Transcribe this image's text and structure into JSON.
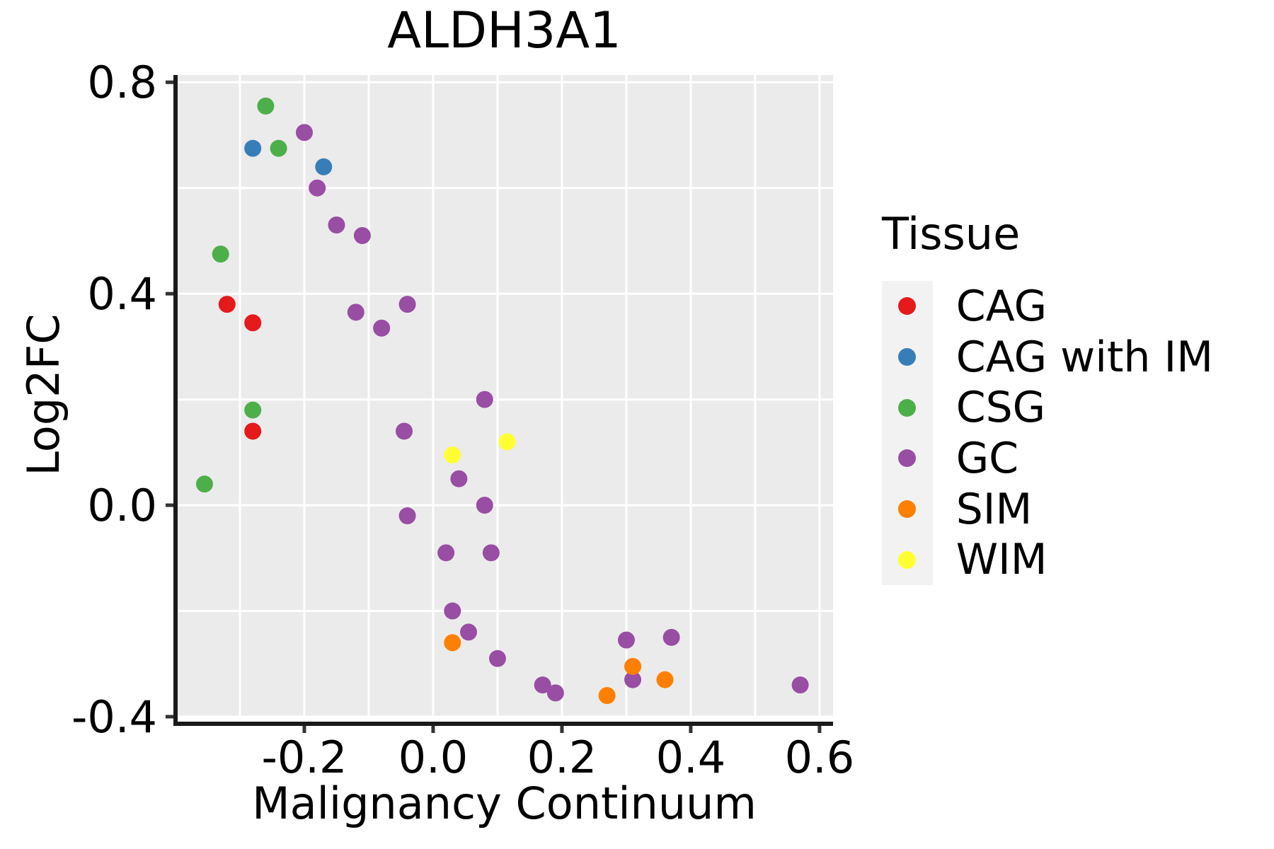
{
  "chart_data": {
    "type": "scatter",
    "title": "ALDH3A1",
    "xlabel": "Malignancy Continuum",
    "ylabel": "Log2FC",
    "xlim": [
      -0.4,
      0.621
    ],
    "ylim": [
      -0.4,
      0.8137
    ],
    "x_ticks": {
      "values": [
        -0.2,
        0.0,
        0.2,
        0.4,
        0.6
      ],
      "labels": [
        "-0.2",
        "0.0",
        "0.2",
        "0.4",
        "0.6"
      ]
    },
    "y_ticks": {
      "values": [
        0.8,
        0.4,
        0.0,
        -0.4
      ],
      "labels": [
        "0.8",
        "0.4",
        "0.0",
        "-0.4"
      ]
    },
    "x_gridlines": [
      -0.3,
      -0.2,
      -0.1,
      0.0,
      0.1,
      0.2,
      0.3,
      0.4,
      0.5,
      0.6
    ],
    "y_gridlines": [
      -0.4,
      -0.2,
      0.0,
      0.2,
      0.4,
      0.6,
      0.8
    ],
    "grid": true,
    "legend_title": "Tissue",
    "legend_position": "right",
    "point_radius": 12,
    "series": [
      {
        "name": "CAG",
        "color": "#E41A1C",
        "points": [
          [
            -0.32,
            0.38
          ],
          [
            -0.28,
            0.345
          ],
          [
            -0.28,
            0.14
          ]
        ]
      },
      {
        "name": "CAG with IM",
        "color": "#377EB8",
        "points": [
          [
            -0.28,
            0.675
          ],
          [
            -0.17,
            0.64
          ]
        ]
      },
      {
        "name": "CSG",
        "color": "#4DAF4A",
        "points": [
          [
            -0.26,
            0.755
          ],
          [
            -0.24,
            0.675
          ],
          [
            -0.33,
            0.475
          ],
          [
            -0.28,
            0.18
          ],
          [
            -0.355,
            0.04
          ]
        ]
      },
      {
        "name": "GC",
        "color": "#984EA3",
        "points": [
          [
            -0.2,
            0.705
          ],
          [
            -0.18,
            0.6
          ],
          [
            -0.15,
            0.53
          ],
          [
            -0.11,
            0.51
          ],
          [
            -0.12,
            0.365
          ],
          [
            -0.08,
            0.335
          ],
          [
            -0.04,
            0.38
          ],
          [
            0.08,
            0.2
          ],
          [
            -0.045,
            0.14
          ],
          [
            0.04,
            0.05
          ],
          [
            0.08,
            0.0
          ],
          [
            -0.04,
            -0.02
          ],
          [
            0.02,
            -0.09
          ],
          [
            0.09,
            -0.09
          ],
          [
            0.03,
            -0.2
          ],
          [
            0.055,
            -0.24
          ],
          [
            0.1,
            -0.29
          ],
          [
            0.3,
            -0.255
          ],
          [
            0.37,
            -0.25
          ],
          [
            0.31,
            -0.33
          ],
          [
            0.17,
            -0.34
          ],
          [
            0.19,
            -0.355
          ],
          [
            0.57,
            -0.34
          ]
        ]
      },
      {
        "name": "SIM",
        "color": "#FF7F00",
        "points": [
          [
            0.03,
            -0.26
          ],
          [
            0.31,
            -0.305
          ],
          [
            0.36,
            -0.33
          ],
          [
            0.27,
            -0.36
          ]
        ]
      },
      {
        "name": "WIM",
        "color": "#FFFF33",
        "points": [
          [
            0.03,
            0.095
          ],
          [
            0.115,
            0.12
          ]
        ]
      }
    ]
  },
  "theme": {
    "panel_bg": "#EBEBEB",
    "grid_color": "#FFFFFF",
    "axis_color": "#1A1A1A",
    "tick_color": "#333333",
    "text_color": "#000000",
    "legend_key_bg": "#F2F2F2"
  }
}
